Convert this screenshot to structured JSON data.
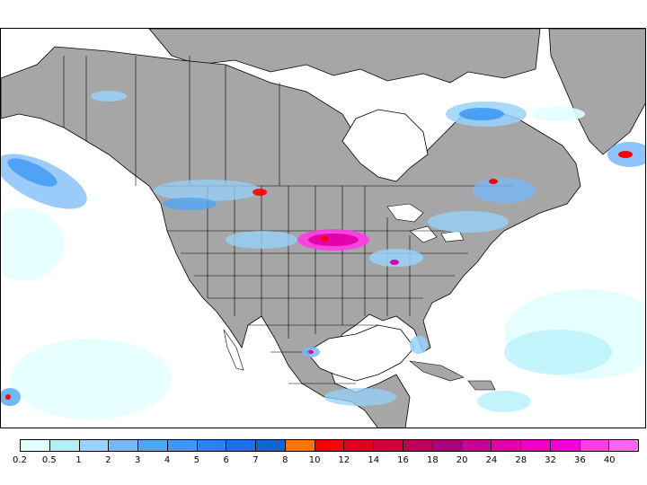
{
  "map": {
    "land_color": "#a6a6a6",
    "ocean_color": "#ffffff",
    "border_color": "#000000"
  },
  "legend": {
    "levels": [
      "0.2",
      "0.5",
      "1",
      "2",
      "3",
      "4",
      "5",
      "6",
      "7",
      "8",
      "10",
      "12",
      "14",
      "16",
      "18",
      "20",
      "24",
      "28",
      "32",
      "36",
      "40"
    ],
    "colors": [
      "#e1ffff",
      "#b4f0fa",
      "#96d2fa",
      "#78b9fa",
      "#50a5f5",
      "#3c97f5",
      "#2882f0",
      "#1e6eeb",
      "#1464d2",
      "#ff7300",
      "#ff0000",
      "#e1001e",
      "#d2003c",
      "#be005a",
      "#aa0078",
      "#c80096",
      "#e100aa",
      "#f000c3",
      "#f500dc",
      "#ff3ce6",
      "#ff64f5"
    ]
  }
}
